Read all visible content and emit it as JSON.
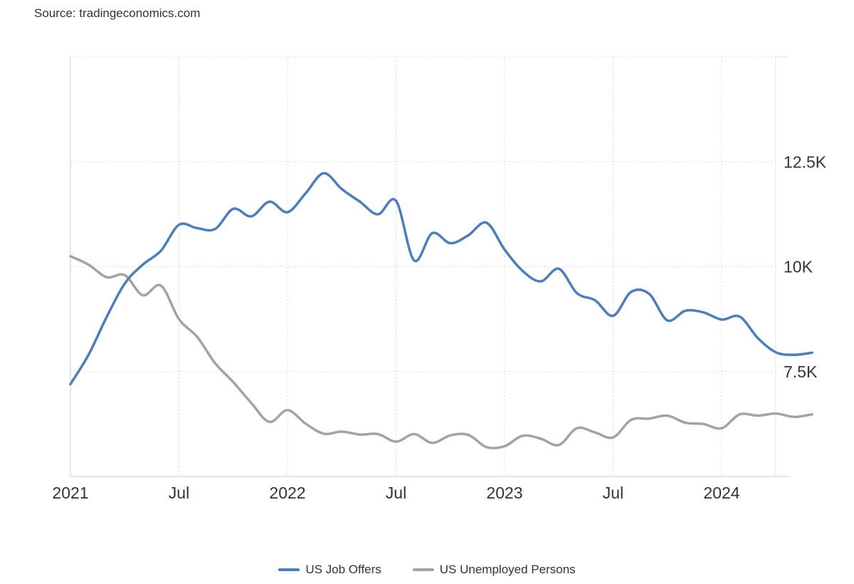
{
  "source": "Source: tradingeconomics.com",
  "chart_data": {
    "type": "line",
    "x_tick_labels": [
      "2021",
      "Jul",
      "2022",
      "Jul",
      "2023",
      "Jul",
      "2024"
    ],
    "x_tick_dates": [
      "2021-01",
      "2021-07",
      "2022-01",
      "2022-07",
      "2023-01",
      "2023-07",
      "2024-01"
    ],
    "x_range": [
      "2021-01",
      "2024-06"
    ],
    "y_ticks": [
      7500,
      10000,
      12500
    ],
    "y_tick_labels": [
      "7.5K",
      "10K",
      "12.5K"
    ],
    "ylim": [
      5000,
      15000
    ],
    "grid": true,
    "legend_position": "bottom-center",
    "series": [
      {
        "name": "US Job Offers",
        "color": "#4f7db7",
        "x": [
          "2021-01",
          "2021-02",
          "2021-03",
          "2021-04",
          "2021-05",
          "2021-06",
          "2021-07",
          "2021-08",
          "2021-09",
          "2021-10",
          "2021-11",
          "2021-12",
          "2022-01",
          "2022-02",
          "2022-03",
          "2022-04",
          "2022-05",
          "2022-06",
          "2022-07",
          "2022-08",
          "2022-09",
          "2022-10",
          "2022-11",
          "2022-12",
          "2023-01",
          "2023-02",
          "2023-03",
          "2023-04",
          "2023-05",
          "2023-06",
          "2023-07",
          "2023-08",
          "2023-09",
          "2023-10",
          "2023-11",
          "2023-12",
          "2024-01",
          "2024-02",
          "2024-03",
          "2024-04",
          "2024-05",
          "2024-06"
        ],
        "values": [
          7200,
          7900,
          8800,
          9600,
          10050,
          10380,
          11000,
          10920,
          10900,
          11380,
          11200,
          11550,
          11300,
          11750,
          12230,
          11850,
          11550,
          11250,
          11570,
          10150,
          10800,
          10560,
          10750,
          11050,
          10410,
          9900,
          9650,
          9950,
          9370,
          9200,
          8830,
          9400,
          9350,
          8720,
          8950,
          8910,
          8740,
          8810,
          8300,
          7960,
          7900,
          7950
        ]
      },
      {
        "name": "US Unemployed Persons",
        "color": "#a3a3a3",
        "x": [
          "2021-01",
          "2021-02",
          "2021-03",
          "2021-04",
          "2021-05",
          "2021-06",
          "2021-07",
          "2021-08",
          "2021-09",
          "2021-10",
          "2021-11",
          "2021-12",
          "2022-01",
          "2022-02",
          "2022-03",
          "2022-04",
          "2022-05",
          "2022-06",
          "2022-07",
          "2022-08",
          "2022-09",
          "2022-10",
          "2022-11",
          "2022-12",
          "2023-01",
          "2023-02",
          "2023-03",
          "2023-04",
          "2023-05",
          "2023-06",
          "2023-07",
          "2023-08",
          "2023-09",
          "2023-10",
          "2023-11",
          "2023-12",
          "2024-01",
          "2024-02",
          "2024-03",
          "2024-04",
          "2024-05",
          "2024-06"
        ],
        "values": [
          10250,
          10050,
          9750,
          9800,
          9320,
          9550,
          8750,
          8330,
          7700,
          7250,
          6750,
          6300,
          6580,
          6260,
          6020,
          6070,
          6000,
          6010,
          5830,
          6010,
          5800,
          5980,
          5990,
          5700,
          5720,
          5970,
          5900,
          5750,
          6150,
          6050,
          5930,
          6350,
          6380,
          6450,
          6280,
          6250,
          6150,
          6480,
          6450,
          6500,
          6420,
          6480
        ]
      }
    ]
  }
}
